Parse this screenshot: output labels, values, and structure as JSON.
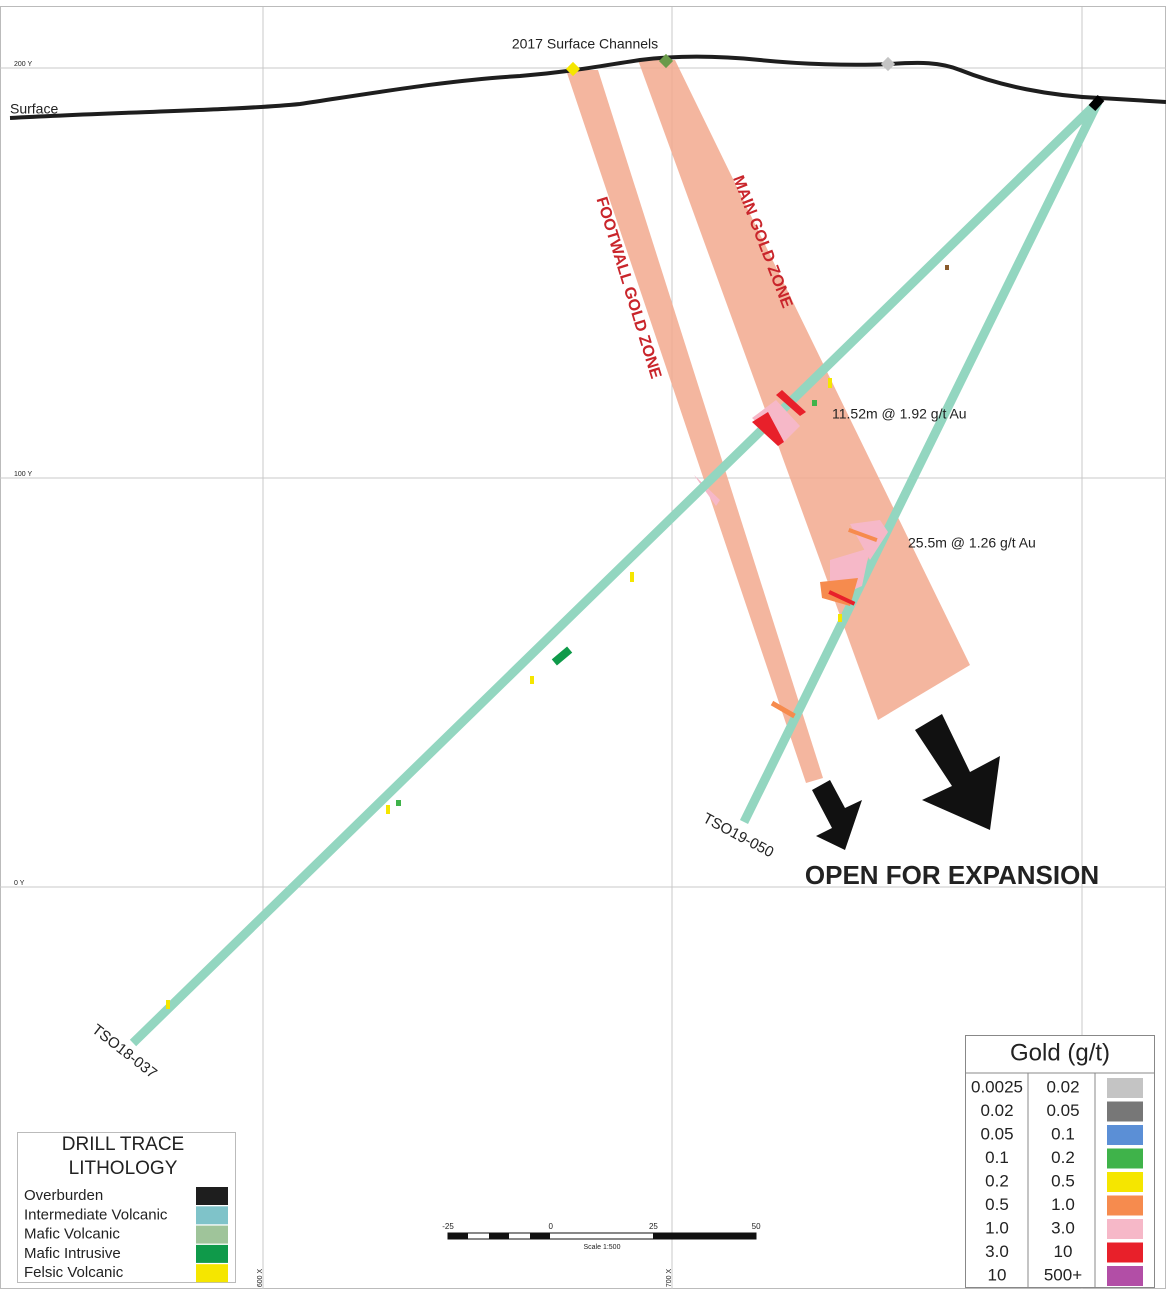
{
  "grid_labels": {
    "y": [
      "200 Y",
      "100 Y",
      "0 Y"
    ],
    "x": [
      "600 X",
      "700 X"
    ]
  },
  "surface_label": "Surface",
  "channels_label": "2017 Surface Channels",
  "zones": {
    "footwall": "FOOTWALL GOLD ZONE",
    "main": "MAIN GOLD ZONE"
  },
  "intercepts": [
    "11.52m @ 1.92 g/t Au",
    "25.5m @ 1.26 g/t Au"
  ],
  "holes": [
    "TSO19-050",
    "TSO18-037"
  ],
  "expansion_label": "OPEN FOR EXPANSION",
  "gold_legend": {
    "title": "Gold (g/t)",
    "rows": [
      {
        "from": "0.0025",
        "to": "0.02",
        "color": "#c4c4c4"
      },
      {
        "from": "0.02",
        "to": "0.05",
        "color": "#777777"
      },
      {
        "from": "0.05",
        "to": "0.1",
        "color": "#5b8fd6"
      },
      {
        "from": "0.1",
        "to": "0.2",
        "color": "#3fb34a"
      },
      {
        "from": "0.2",
        "to": "0.5",
        "color": "#f5e600"
      },
      {
        "from": "0.5",
        "to": "1.0",
        "color": "#f68b4e"
      },
      {
        "from": "1.0",
        "to": "3.0",
        "color": "#f6b8c8"
      },
      {
        "from": "3.0",
        "to": "10",
        "color": "#e8202a"
      },
      {
        "from": "10",
        "to": "500+",
        "color": "#b24ea6"
      }
    ]
  },
  "lithology_legend": {
    "title_lines": [
      "DRILL TRACE",
      "LITHOLOGY"
    ],
    "items": [
      {
        "name": "Overburden",
        "color": "#1e1e1e"
      },
      {
        "name": "Intermediate Volcanic",
        "color": "#7fc3c9"
      },
      {
        "name": "Mafic Volcanic",
        "color": "#9fc49a"
      },
      {
        "name": "Mafic Intrusive",
        "color": "#0f9a4a"
      },
      {
        "name": "Felsic Volcanic",
        "color": "#f5e600"
      }
    ]
  },
  "scale_bar": {
    "labels": [
      "-25",
      "0",
      "25",
      "50"
    ],
    "caption": "Scale 1:500"
  }
}
